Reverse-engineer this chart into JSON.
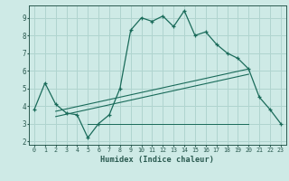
{
  "xlabel": "Humidex (Indice chaleur)",
  "bg_color": "#ceeae6",
  "line_color": "#1a6b5a",
  "grid_color": "#b0d4cf",
  "axis_color": "#2a5a50",
  "xlim": [
    -0.5,
    23.5
  ],
  "ylim": [
    1.8,
    9.7
  ],
  "xticks": [
    0,
    1,
    2,
    3,
    4,
    5,
    6,
    7,
    8,
    9,
    10,
    11,
    12,
    13,
    14,
    15,
    16,
    17,
    18,
    19,
    20,
    21,
    22,
    23
  ],
  "yticks": [
    2,
    3,
    4,
    5,
    6,
    7,
    8,
    9
  ],
  "main_data": {
    "x": [
      0,
      1,
      2,
      3,
      4,
      5,
      6,
      7,
      8,
      9,
      10,
      11,
      12,
      13,
      14,
      15,
      16,
      17,
      18,
      19,
      20,
      21,
      22,
      23
    ],
    "y": [
      3.8,
      5.3,
      4.1,
      3.6,
      3.5,
      2.2,
      3.0,
      3.5,
      5.0,
      8.3,
      9.0,
      8.8,
      9.1,
      8.5,
      9.4,
      8.0,
      8.2,
      7.5,
      7.0,
      6.7,
      6.1,
      4.5,
      3.8,
      3.0
    ]
  },
  "line1": {
    "x": [
      2,
      20
    ],
    "y": [
      3.7,
      6.1
    ]
  },
  "line2": {
    "x": [
      2,
      20
    ],
    "y": [
      3.4,
      5.8
    ]
  },
  "hline": {
    "x": [
      5,
      20
    ],
    "y": [
      3.0,
      3.0
    ]
  }
}
